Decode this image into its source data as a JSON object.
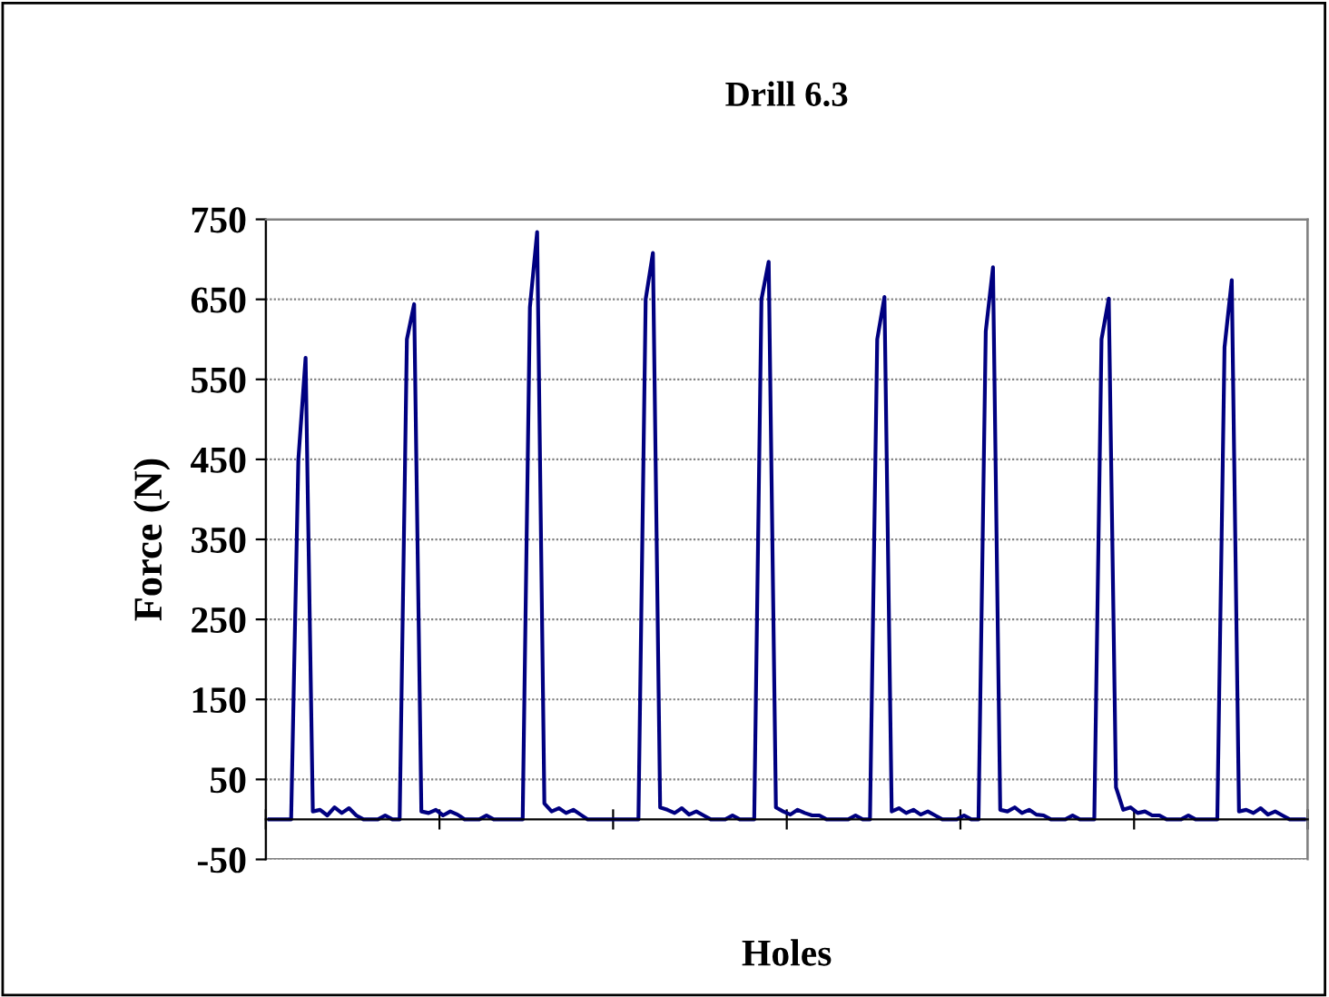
{
  "chart_data": {
    "type": "line",
    "title": "Drill 6.3",
    "xlabel": "Holes",
    "ylabel": "Force (N)",
    "categories": [
      null,
      null,
      null,
      null,
      null,
      null,
      null,
      null,
      null,
      null,
      null,
      null,
      null,
      null,
      null,
      null,
      null,
      null,
      null,
      null,
      null,
      null,
      null,
      null,
      null,
      null,
      null,
      null,
      null,
      null,
      null,
      null,
      null,
      null,
      null,
      null,
      null,
      null,
      null,
      null,
      null,
      null,
      null,
      null,
      null,
      null,
      null,
      null,
      null,
      null,
      null,
      null,
      null,
      null,
      null,
      null,
      null,
      null,
      null,
      null,
      null,
      null,
      null,
      null,
      null,
      null,
      null,
      null,
      null,
      null,
      null,
      null,
      null,
      null,
      null,
      null,
      null,
      null,
      null,
      null,
      null,
      null,
      null,
      null,
      null,
      null,
      null,
      null,
      null,
      null,
      null,
      null,
      null,
      null,
      null,
      null,
      null,
      null,
      null,
      null,
      null,
      null,
      null,
      null,
      null,
      null,
      null,
      null,
      null,
      null,
      null,
      null,
      null,
      null,
      null,
      null,
      null,
      null,
      null,
      null,
      null,
      null,
      null,
      null,
      null,
      null,
      null,
      null,
      null,
      null,
      null,
      null,
      null,
      null,
      null,
      null,
      null,
      null,
      null,
      null,
      null,
      null,
      null,
      null
    ],
    "series": [
      {
        "color": "#000080",
        "values": [
          0,
          0,
          0,
          0,
          450,
          577,
          10,
          12,
          5,
          15,
          8,
          14,
          5,
          0,
          0,
          0,
          5,
          0,
          0,
          600,
          644,
          10,
          8,
          12,
          5,
          10,
          6,
          0,
          0,
          0,
          5,
          0,
          0,
          0,
          0,
          0,
          640,
          734,
          20,
          10,
          14,
          8,
          12,
          6,
          0,
          0,
          0,
          0,
          0,
          0,
          0,
          0,
          650,
          708,
          15,
          12,
          8,
          14,
          6,
          10,
          5,
          0,
          0,
          0,
          5,
          0,
          0,
          0,
          650,
          697,
          15,
          10,
          6,
          12,
          8,
          5,
          5,
          0,
          0,
          0,
          0,
          5,
          0,
          0,
          600,
          653,
          10,
          14,
          8,
          12,
          6,
          10,
          5,
          0,
          0,
          0,
          5,
          0,
          0,
          610,
          690,
          12,
          10,
          15,
          8,
          12,
          6,
          5,
          0,
          0,
          0,
          5,
          0,
          0,
          0,
          600,
          651,
          40,
          12,
          15,
          8,
          10,
          5,
          5,
          0,
          0,
          0,
          5,
          0,
          0,
          0,
          0,
          590,
          674,
          10,
          12,
          8,
          14,
          6,
          10,
          5,
          0,
          0,
          0
        ]
      }
    ],
    "ylim": [
      -50,
      750
    ],
    "yticks": [
      -50,
      50,
      150,
      250,
      350,
      450,
      550,
      650,
      750
    ],
    "grid": "y",
    "legend": false,
    "marker": "none",
    "line_style": "solid"
  }
}
